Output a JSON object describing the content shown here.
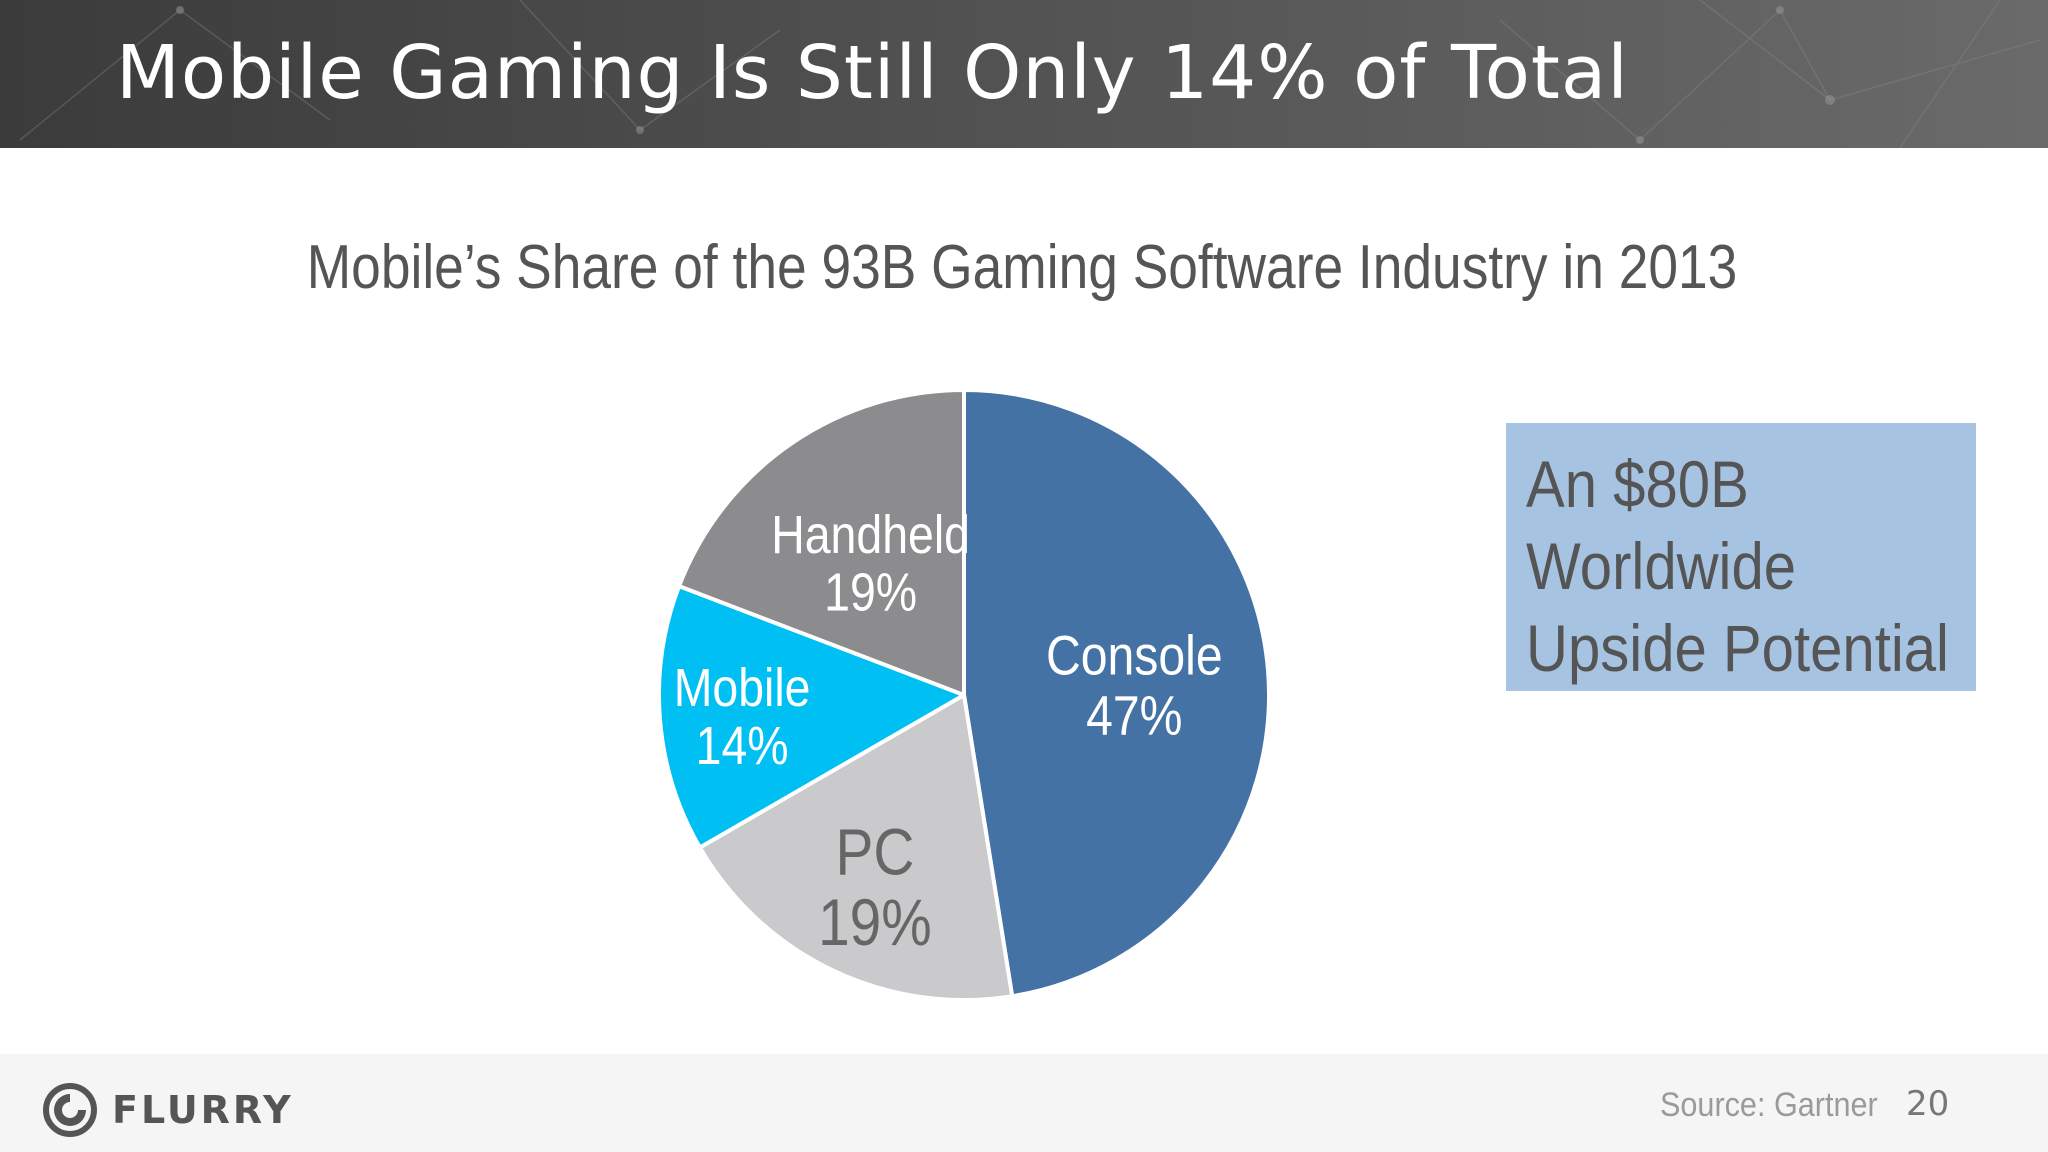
{
  "slide": {
    "title": "Mobile Gaming Is Still Only 14% of Total",
    "page_number": "20"
  },
  "chart_data": {
    "type": "pie",
    "title": "Mobile’s Share of the 93B Gaming Software Industry in 2013",
    "slices": [
      {
        "name": "Console",
        "value": 47,
        "label": "47%",
        "color": "#4572a4"
      },
      {
        "name": "PC",
        "value": 19,
        "label": "19%",
        "color": "#cacacc"
      },
      {
        "name": "Mobile",
        "value": 14,
        "label": "14%",
        "color": "#00bff2"
      },
      {
        "name": "Handheld",
        "value": 19,
        "label": "19%",
        "color": "#8c8c8f"
      }
    ],
    "legend": "none",
    "data_labels": "inside"
  },
  "callout": {
    "lines": [
      "An $80B",
      "Worldwide",
      "Upside Potential"
    ],
    "color": "#a7c3e2"
  },
  "footer": {
    "logo_text": "FLURRY",
    "source": "Source: Gartner"
  }
}
